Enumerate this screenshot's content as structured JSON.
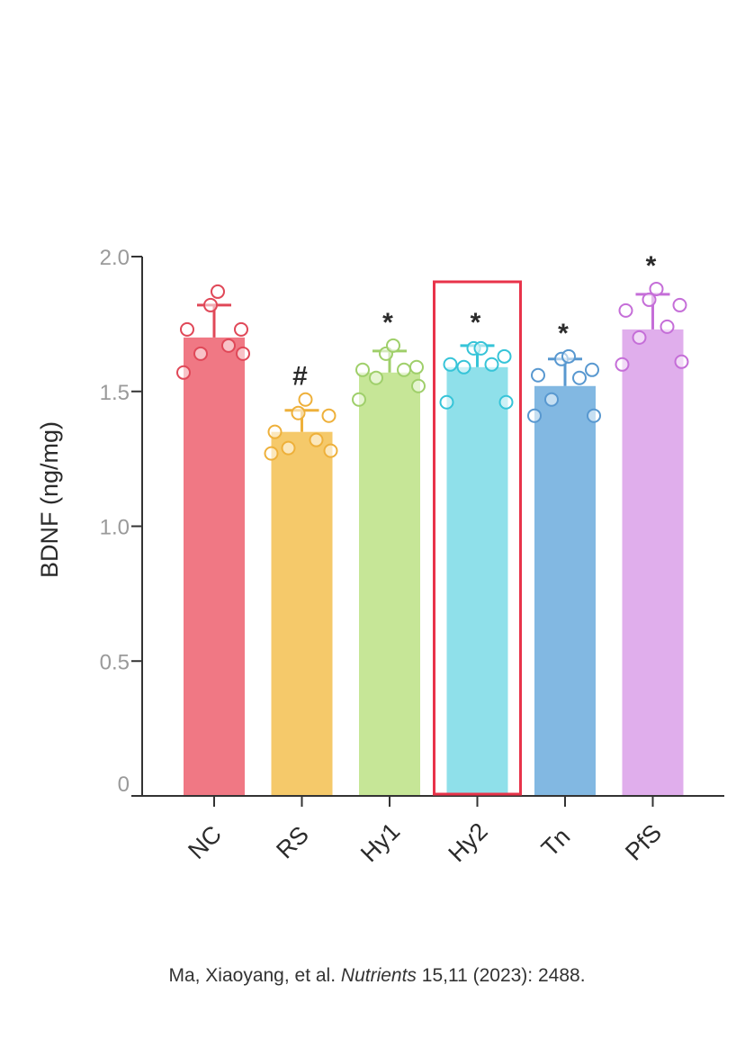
{
  "chart_data": {
    "type": "bar",
    "ylabel": "BDNF (ng/mg)",
    "ylim": [
      0,
      2.0
    ],
    "yticks": [
      {
        "value": 0,
        "label": "0"
      },
      {
        "value": 0.5,
        "label": "0.5"
      },
      {
        "value": 1.0,
        "label": "1.0"
      },
      {
        "value": 1.5,
        "label": "1.5"
      },
      {
        "value": 2.0,
        "label": "2.0"
      }
    ],
    "categories": [
      "NC",
      "RS",
      "Hy1",
      "Hy2",
      "Tn",
      "PfS"
    ],
    "highlighted_category": "Hy2",
    "grid": false,
    "legend": "none",
    "bars": [
      {
        "category": "NC",
        "mean": 1.7,
        "error": 0.12,
        "significance": "",
        "fill": "#f07884",
        "stroke": "#e04858",
        "points": [
          1.57,
          1.64,
          1.64,
          1.67,
          1.73,
          1.73,
          1.82,
          1.87
        ]
      },
      {
        "category": "RS",
        "mean": 1.35,
        "error": 0.08,
        "significance": "#",
        "fill": "#f5c96a",
        "stroke": "#eeb03a",
        "points": [
          1.27,
          1.28,
          1.29,
          1.32,
          1.35,
          1.41,
          1.42,
          1.47
        ]
      },
      {
        "category": "Hy1",
        "mean": 1.57,
        "error": 0.08,
        "significance": "*",
        "fill": "#c6e697",
        "stroke": "#9fcf6a",
        "points": [
          1.47,
          1.52,
          1.55,
          1.58,
          1.58,
          1.59,
          1.64,
          1.67
        ]
      },
      {
        "category": "Hy2",
        "mean": 1.59,
        "error": 0.08,
        "significance": "*",
        "fill": "#8fe0ea",
        "stroke": "#36c4d8",
        "points": [
          1.46,
          1.46,
          1.59,
          1.6,
          1.6,
          1.63,
          1.66,
          1.66
        ]
      },
      {
        "category": "Tn",
        "mean": 1.52,
        "error": 0.1,
        "significance": "*",
        "fill": "#82b8e2",
        "stroke": "#5898d0",
        "points": [
          1.41,
          1.41,
          1.47,
          1.55,
          1.56,
          1.58,
          1.62,
          1.63
        ]
      },
      {
        "category": "PfS",
        "mean": 1.73,
        "error": 0.13,
        "significance": "*",
        "fill": "#e0aeec",
        "stroke": "#c56ed8",
        "points": [
          1.6,
          1.61,
          1.7,
          1.74,
          1.8,
          1.82,
          1.84,
          1.88
        ]
      }
    ],
    "highlight_color": "#e8334a",
    "axis_color": "#333333"
  },
  "citation": {
    "authors": "Ma, Xiaoyang, et al. ",
    "journal": "Nutrients",
    "rest": " 15,11 (2023): 2488."
  }
}
